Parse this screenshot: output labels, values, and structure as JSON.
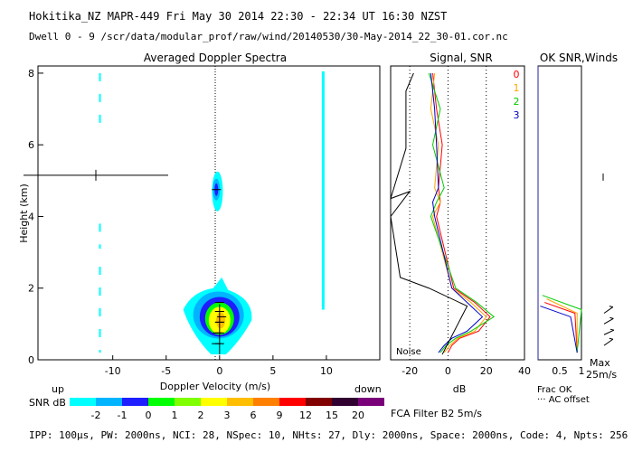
{
  "header": {
    "line1": "Hokitika_NZ   MAPR-449   Fri May 30 2014 22:30 - 22:34 UT 16:30 NZST",
    "line2": "Dwell   0 -  9   /scr/data/modular_prof/raw/wind/20140530/30-May-2014_22_30-01.cor.nc"
  },
  "footer": {
    "params": "IPP: 100µs,  PW: 2000ns,  NCI:  28,  NSpec: 10,  NHts: 27,  Dly: 2000ns,  Space: 2000ns,  Code: 4,  Npts: 256",
    "filter": "FCA Filter B2   5m/s"
  },
  "colors": {
    "levels": [
      "#00ffff",
      "#00b4ff",
      "#1e1eff",
      "#00ff00",
      "#7fff00",
      "#ffff00",
      "#ffbf00",
      "#ff7f00",
      "#ff0000",
      "#800000",
      "#300030",
      "#7a007a"
    ],
    "level_labels": [
      "-2",
      "-1",
      "0",
      "1",
      "2",
      "3",
      "6",
      "9",
      "12",
      "15",
      "20"
    ],
    "series0": "#ff0000",
    "series1": "#ffa500",
    "series2": "#00cc00",
    "series3": "#0000cc"
  },
  "chart_data": [
    {
      "type": "heatmap",
      "title": "Averaged Doppler Spectra",
      "xlabel": "Doppler Velocity (m/s)",
      "ylabel": "Height (km)",
      "xlim": [
        -17,
        15
      ],
      "ylim": [
        0,
        8.2
      ],
      "xticks": [
        "-10",
        "-5",
        "0",
        "5",
        "10"
      ],
      "yticks": [
        "0",
        "2",
        "4",
        "6",
        "8"
      ],
      "dir_left": "up",
      "dir_right": "down",
      "colorbar_label": "SNR dB",
      "cells": [
        {
          "h": 0.45,
          "v": -0.3,
          "lvl": 0
        },
        {
          "h": 0.75,
          "v": -0.2,
          "lvl": 2
        },
        {
          "h": 1.05,
          "v": 0.0,
          "lvl": 5
        },
        {
          "h": 1.2,
          "v": 0.2,
          "lvl": 6
        },
        {
          "h": 1.35,
          "v": 0.0,
          "lvl": 4
        },
        {
          "h": 1.6,
          "v": 0.0,
          "lvl": 2
        },
        {
          "h": 4.75,
          "v": -0.3,
          "lvl": 2
        }
      ]
    },
    {
      "type": "line",
      "title": "Signal, SNR",
      "xlabel": "dB",
      "xlim": [
        -30,
        40
      ],
      "ylim": [
        0,
        8.2
      ],
      "xticks": [
        "-20",
        "0",
        "20",
        "40"
      ],
      "noise_label": "Noise",
      "series": [
        {
          "name": "0",
          "x": [
            0,
            2,
            6,
            16,
            22,
            14,
            3,
            -6,
            -4,
            -5,
            -3,
            -6,
            -8
          ],
          "y": [
            0.2,
            0.4,
            0.6,
            0.8,
            1.2,
            1.6,
            2.0,
            4.0,
            4.4,
            4.8,
            6.0,
            7.0,
            8.0
          ]
        },
        {
          "name": "1",
          "x": [
            -2,
            1,
            5,
            14,
            20,
            12,
            2,
            -8,
            -4,
            -7,
            -5,
            -9,
            -7
          ],
          "y": [
            0.2,
            0.4,
            0.6,
            0.8,
            1.2,
            1.6,
            2.0,
            4.0,
            4.4,
            4.8,
            6.0,
            7.0,
            8.0
          ]
        },
        {
          "name": "2",
          "x": [
            -4,
            -1,
            4,
            12,
            24,
            15,
            4,
            -9,
            -6,
            -2,
            -8,
            -4,
            -10
          ],
          "y": [
            0.2,
            0.4,
            0.6,
            0.8,
            1.2,
            1.6,
            2.0,
            4.0,
            4.4,
            4.8,
            6.0,
            7.0,
            8.0
          ]
        },
        {
          "name": "3",
          "x": [
            -5,
            -2,
            2,
            10,
            18,
            10,
            2,
            -7,
            -8,
            -5,
            -6,
            -7,
            -9
          ],
          "y": [
            0.2,
            0.4,
            0.6,
            0.8,
            1.2,
            1.6,
            2.0,
            4.0,
            4.4,
            4.8,
            6.0,
            7.0,
            8.0
          ]
        }
      ]
    },
    {
      "type": "line",
      "title": "OK SNR,Winds",
      "xlim": [
        0,
        1
      ],
      "ylim": [
        0,
        8.2
      ],
      "xticks": [
        "0.5",
        "1"
      ],
      "xlabel_lines": [
        "Frac OK",
        "··· AC offset"
      ],
      "legend": [
        "0",
        "1",
        "2",
        "3"
      ],
      "max_label": "Max",
      "speed_label": "25m/s"
    }
  ]
}
